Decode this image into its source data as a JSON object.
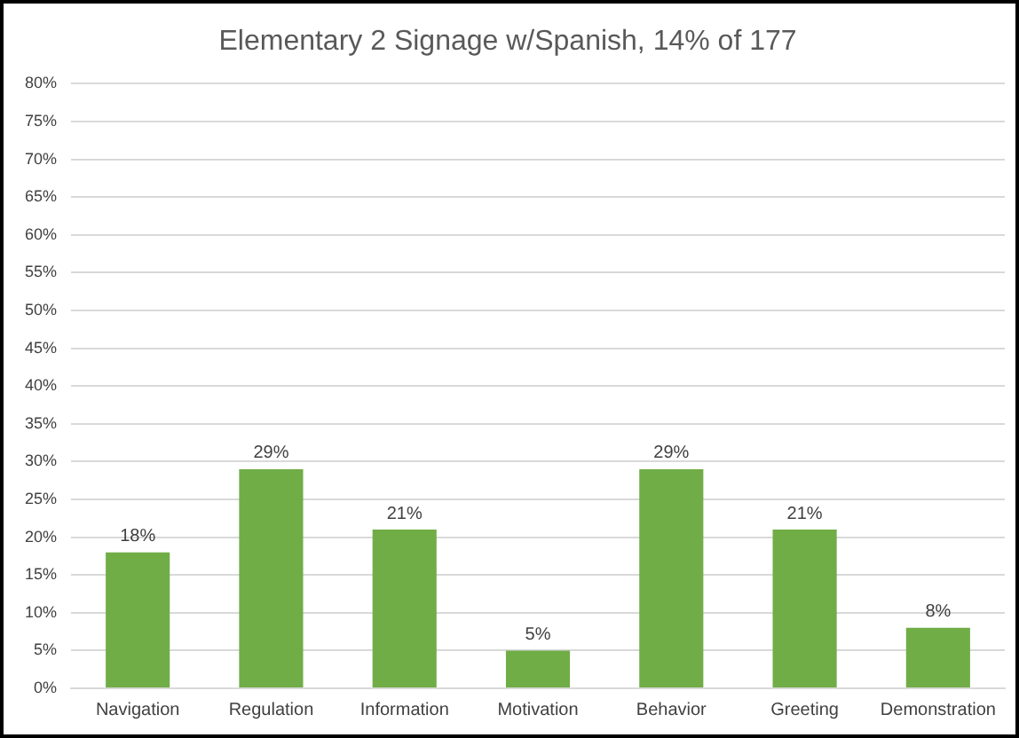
{
  "chart_data": {
    "type": "bar",
    "title": "Elementary 2 Signage w/Spanish, 14% of 177",
    "categories": [
      "Navigation",
      "Regulation",
      "Information",
      "Motivation",
      "Behavior",
      "Greeting",
      "Demonstration"
    ],
    "values": [
      18,
      29,
      21,
      5,
      29,
      21,
      8
    ],
    "value_labels": [
      "18%",
      "29%",
      "21%",
      "5%",
      "29%",
      "21%",
      "8%"
    ],
    "color": "#70ad47",
    "ylim": [
      0,
      80
    ],
    "yticks": [
      {
        "value": 0,
        "label": "0%"
      },
      {
        "value": 5,
        "label": "5%"
      },
      {
        "value": 10,
        "label": "10%"
      },
      {
        "value": 15,
        "label": "15%"
      },
      {
        "value": 20,
        "label": "20%"
      },
      {
        "value": 25,
        "label": "25%"
      },
      {
        "value": 30,
        "label": "30%"
      },
      {
        "value": 35,
        "label": "35%"
      },
      {
        "value": 40,
        "label": "40%"
      },
      {
        "value": 45,
        "label": "45%"
      },
      {
        "value": 50,
        "label": "50%"
      },
      {
        "value": 55,
        "label": "55%"
      },
      {
        "value": 60,
        "label": "60%"
      },
      {
        "value": 65,
        "label": "65%"
      },
      {
        "value": 70,
        "label": "70%"
      },
      {
        "value": 75,
        "label": "75%"
      },
      {
        "value": 80,
        "label": "80%"
      }
    ],
    "grid": "y",
    "legend": false
  }
}
